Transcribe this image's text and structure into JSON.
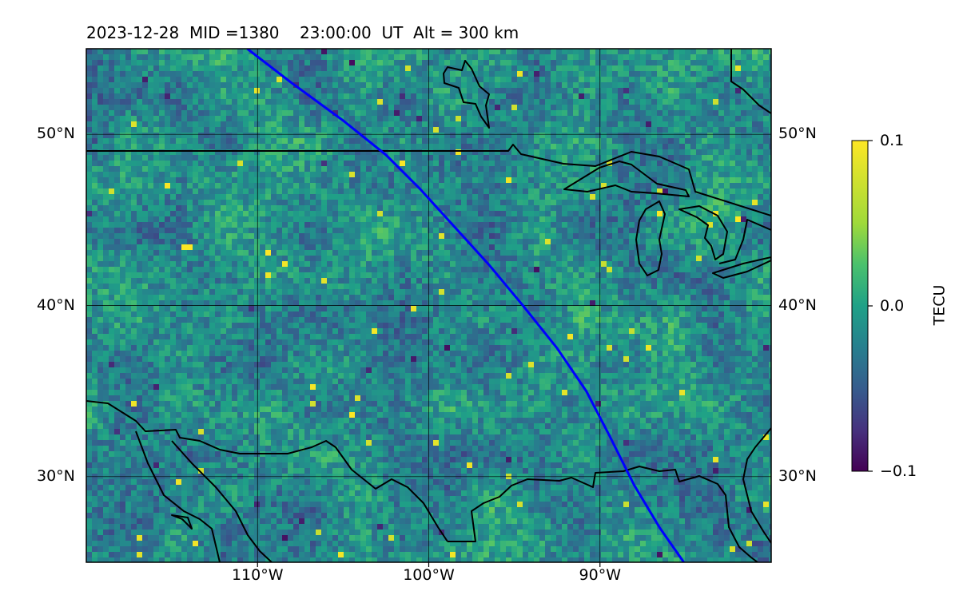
{
  "title": "2023-12-28  MID =1380    23:00:00  UT  Alt = 300 km",
  "map": {
    "lon_range": [
      -120,
      -80
    ],
    "lat_range": [
      25,
      55
    ],
    "lat_ticks": [
      {
        "value": 30,
        "label": "30°N"
      },
      {
        "value": 40,
        "label": "40°N"
      },
      {
        "value": 50,
        "label": "50°N"
      }
    ],
    "lon_ticks": [
      {
        "value": -110,
        "label": "110°W"
      },
      {
        "value": -100,
        "label": "100°W"
      },
      {
        "value": -90,
        "label": "90°W"
      }
    ],
    "track_color": "#0000ff",
    "coast_color": "#000000",
    "track_points": [
      [
        -110.6,
        55
      ],
      [
        -108,
        53
      ],
      [
        -105,
        50.8
      ],
      [
        -102.5,
        48.8
      ],
      [
        -100.5,
        46.8
      ],
      [
        -98.5,
        44.6
      ],
      [
        -96.5,
        42.4
      ],
      [
        -94.5,
        40
      ],
      [
        -92.5,
        37.5
      ],
      [
        -90.8,
        35
      ],
      [
        -89.5,
        32.5
      ],
      [
        -88,
        29.5
      ],
      [
        -86.5,
        27
      ],
      [
        -85.1,
        25
      ]
    ]
  },
  "colorbar": {
    "label": "TECU",
    "min": -0.1,
    "max": 0.1,
    "colormap": "viridis",
    "ticks": [
      {
        "value": 0.1,
        "label": "0.1"
      },
      {
        "value": 0.0,
        "label": "0.0"
      },
      {
        "value": -0.1,
        "label": "−0.1"
      }
    ]
  }
}
